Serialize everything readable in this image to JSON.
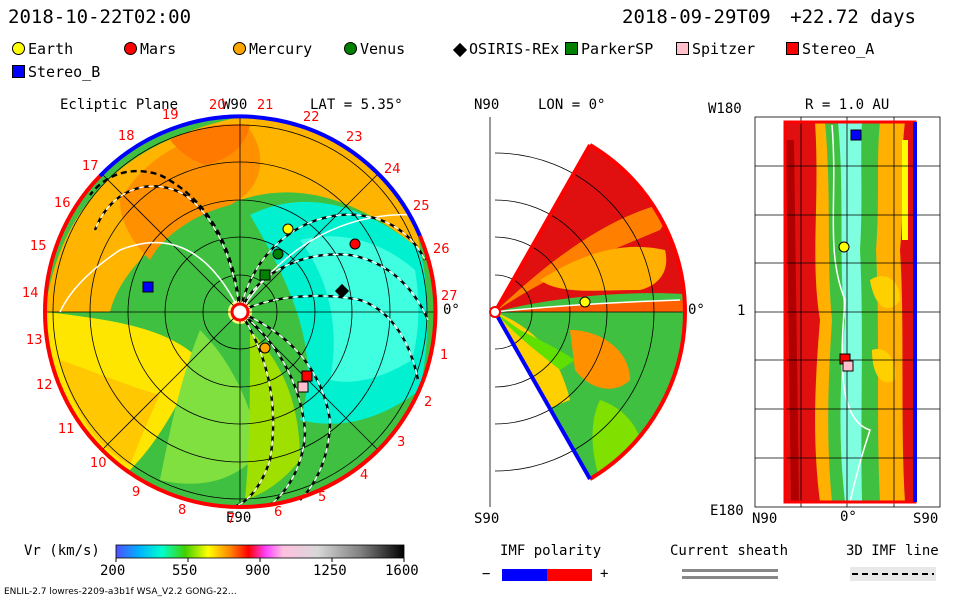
{
  "header": {
    "left_time": "2018-10-22T02:00",
    "right_time": "2018-09-29T09",
    "right_offset": "+22.72 days"
  },
  "legend": {
    "items": [
      {
        "label": "Earth",
        "color": "#ffff00",
        "shape": "circle"
      },
      {
        "label": "Mars",
        "color": "#ff0000",
        "shape": "circle"
      },
      {
        "label": "Mercury",
        "color": "#ffa500",
        "shape": "circle"
      },
      {
        "label": "Venus",
        "color": "#008000",
        "shape": "circle"
      },
      {
        "label": "OSIRIS-REx",
        "color": "#000000",
        "shape": "diamond"
      },
      {
        "label": "ParkerSP",
        "color": "#008000",
        "shape": "square"
      },
      {
        "label": "Spitzer",
        "color": "#ffc0cb",
        "shape": "square"
      },
      {
        "label": "Stereo_A",
        "color": "#ff0000",
        "shape": "square"
      },
      {
        "label": "Stereo_B",
        "color": "#0000ff",
        "shape": "square"
      }
    ]
  },
  "panel_ecliptic": {
    "title": "Ecliptic Plane",
    "lat": "LAT = 5.35°",
    "top": "W90",
    "bottom": "E90",
    "right": "0°",
    "rotation_numbers": [
      "1",
      "2",
      "3",
      "4",
      "5",
      "6",
      "7",
      "8",
      "9",
      "10",
      "11",
      "12",
      "13",
      "14",
      "15",
      "16",
      "17",
      "18",
      "19",
      "20",
      "21",
      "22",
      "23",
      "24",
      "25",
      "26",
      "27"
    ]
  },
  "panel_meridional": {
    "lon": "LON = 0°",
    "top": "N90",
    "bottom": "S90",
    "right": "0°"
  },
  "panel_map": {
    "title": "R = 1.0 AU",
    "top_left": "W180",
    "mid_left": "1",
    "bottom_left": "E180",
    "x_left": "N90",
    "x_mid": "0°",
    "x_right": "S90"
  },
  "colorbar": {
    "label": "Vr (km/s)",
    "ticks": [
      "200",
      "550",
      "900",
      "1250",
      "1600"
    ]
  },
  "imf": {
    "label": "IMF polarity",
    "minus": "−",
    "plus": "+",
    "neg_color": "#0000ff",
    "pos_color": "#ff0000"
  },
  "current_sheath": {
    "label": "Current sheath"
  },
  "imf_line": {
    "label": "3D IMF line"
  },
  "footer": {
    "left": "ENLIL-2.7 lowres-2209-a3b1f WSA_V2.2 GONG-22…"
  }
}
